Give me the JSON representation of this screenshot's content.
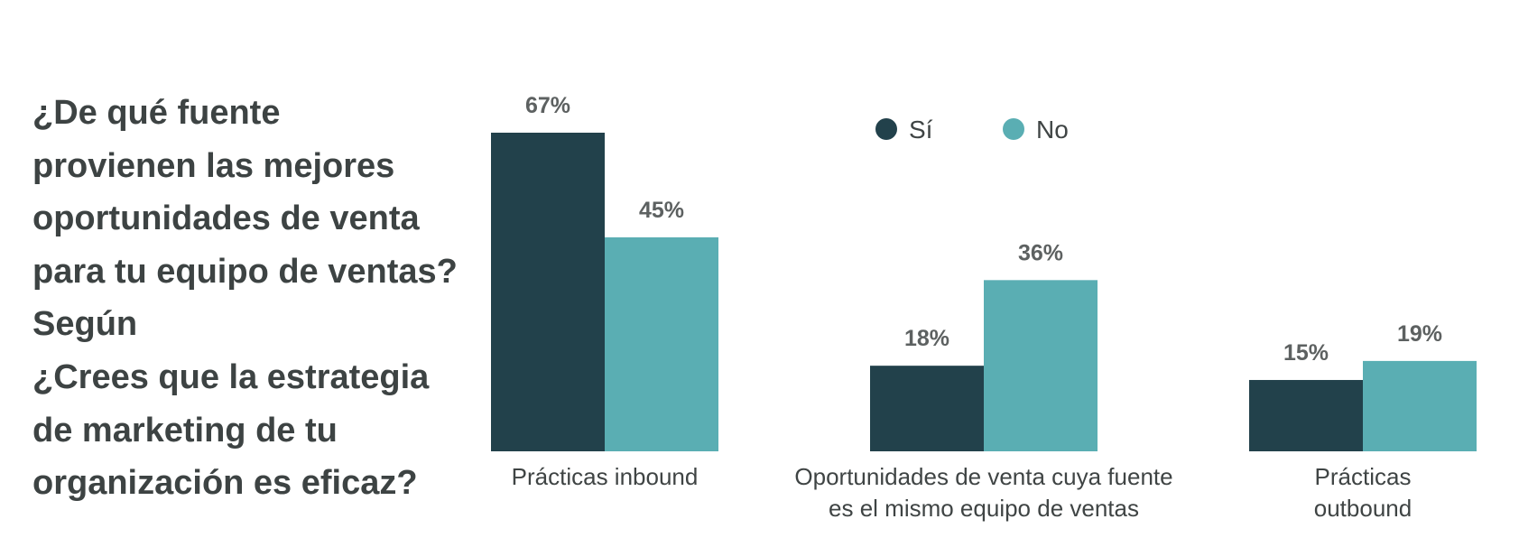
{
  "question": {
    "lines": [
      "¿De qué fuente",
      "provienen las mejores",
      "oportunidades de venta",
      "para tu equipo de ventas?",
      "Según",
      "¿Crees que la estrategia",
      "de marketing de tu",
      "organización es eficaz?"
    ]
  },
  "chart_data": {
    "type": "bar",
    "categories": [
      [
        "Prácticas inbound"
      ],
      [
        "Oportunidades de venta cuya fuente",
        "es el mismo equipo de ventas"
      ],
      [
        "Prácticas",
        "outbound"
      ]
    ],
    "series": [
      {
        "name": "Sí",
        "color": "#22414b",
        "values": [
          67,
          18,
          15
        ],
        "labels": [
          "67%",
          "18%",
          "15%"
        ]
      },
      {
        "name": "No",
        "color": "#5aaeb3",
        "values": [
          45,
          36,
          19
        ],
        "labels": [
          "45%",
          "36%",
          "19%"
        ]
      }
    ],
    "ylim": [
      0,
      67
    ],
    "grid": false,
    "legend": "top"
  }
}
